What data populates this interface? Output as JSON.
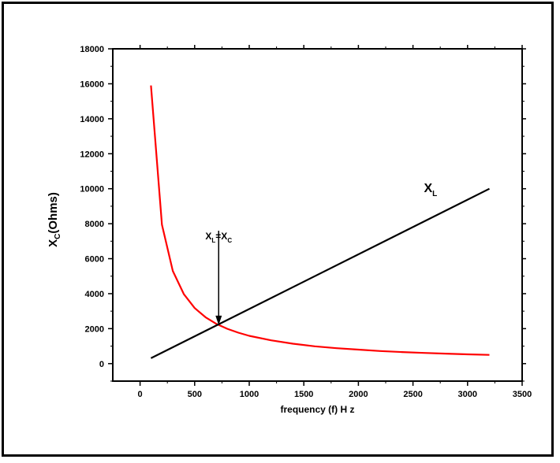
{
  "chart_data": {
    "type": "line",
    "xlabel": "frequency (f) H z",
    "ylabel": {
      "main": "X",
      "sub": "C",
      "rest": "(Ohms)"
    },
    "xlim": [
      -250,
      3500
    ],
    "ylim": [
      -1000,
      18000
    ],
    "x_ticks": [
      0,
      500,
      1000,
      1500,
      2000,
      2500,
      3000,
      3500
    ],
    "y_ticks": [
      0,
      2000,
      4000,
      6000,
      8000,
      10000,
      12000,
      14000,
      16000,
      18000
    ],
    "x_tick_labels": [
      "0",
      "500",
      "1000",
      "1500",
      "2000",
      "2500",
      "3000",
      "3500"
    ],
    "y_tick_labels": [
      "0",
      "2000",
      "4000",
      "6000",
      "8000",
      "10000",
      "12000",
      "14000",
      "16000",
      "18000"
    ],
    "series": [
      {
        "id": "xc",
        "color": "#ff0000",
        "x": [
          100,
          200,
          300,
          400,
          500,
          600,
          700,
          800,
          900,
          1000,
          1200,
          1400,
          1600,
          1800,
          2000,
          2200,
          2400,
          2600,
          2800,
          3000,
          3200
        ],
        "y": [
          15900,
          7950,
          5300,
          3980,
          3180,
          2650,
          2270,
          1990,
          1770,
          1590,
          1330,
          1140,
          990,
          880,
          800,
          720,
          660,
          610,
          570,
          530,
          500
        ]
      },
      {
        "id": "xl",
        "color": "#000000",
        "x": [
          100,
          3200
        ],
        "y": [
          310,
          10000
        ]
      }
    ],
    "annotations": {
      "xl_label": {
        "main": "X",
        "sub": "L",
        "x": 2600,
        "y": 9800
      },
      "equal_label": {
        "main1": "X",
        "sub1": "L",
        "eq": "=",
        "main2": "X",
        "sub2": "C",
        "x": 720,
        "y": 7100
      },
      "arrow": {
        "x": 720,
        "y_from": 7600,
        "y_to": 2200
      }
    }
  }
}
